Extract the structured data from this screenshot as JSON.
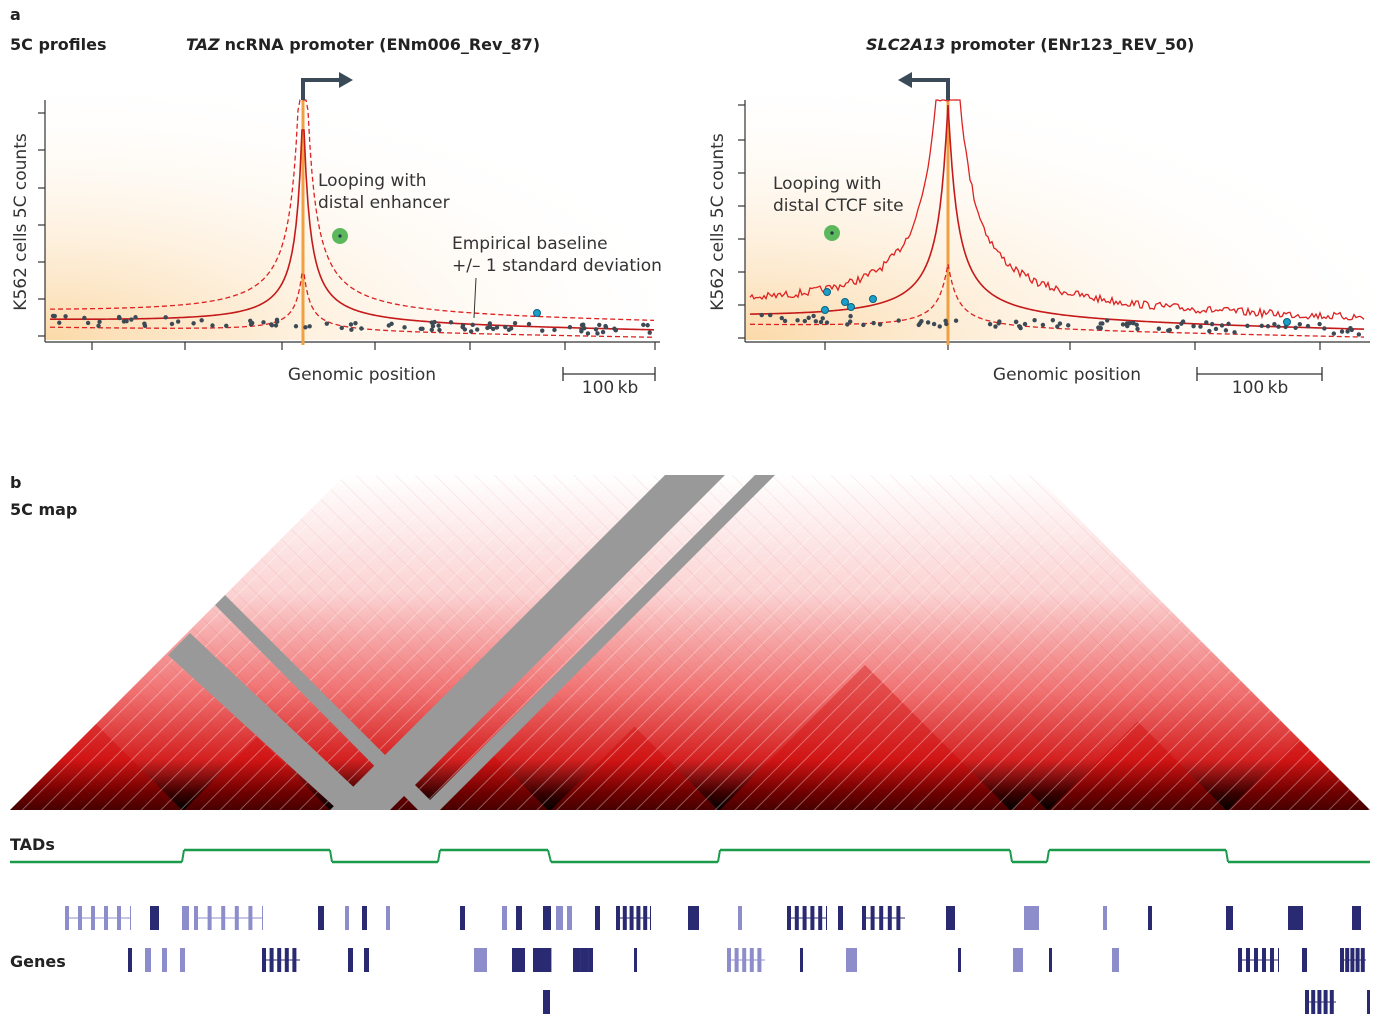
{
  "panel_a": {
    "letter": "a",
    "label": "5C profiles",
    "left": {
      "title": {
        "gene": "TAZ",
        "rest": "ncRNA promoter (ENm006_Rev_87)"
      },
      "y_label": "K562 cells 5C counts",
      "annotations": [
        [
          "Looping with",
          "distal enhancer"
        ],
        [
          "Empirical baseline",
          "+/– 1 standard deviation"
        ]
      ],
      "x_label": "Genomic position",
      "scale_bar": "100 kb"
    },
    "right": {
      "title": {
        "gene": "SLC2A13",
        "rest": "promoter (ENr123_REV_50)"
      },
      "y_label": "K562 cells 5C counts",
      "annotations": [
        [
          "Looping with",
          "distal CTCF site"
        ]
      ],
      "x_label": "Genomic position",
      "scale_bar": "100 kb"
    }
  },
  "panel_b": {
    "letter": "b",
    "label": "5C map",
    "tracks": [
      "TADs",
      "Genes"
    ]
  }
}
